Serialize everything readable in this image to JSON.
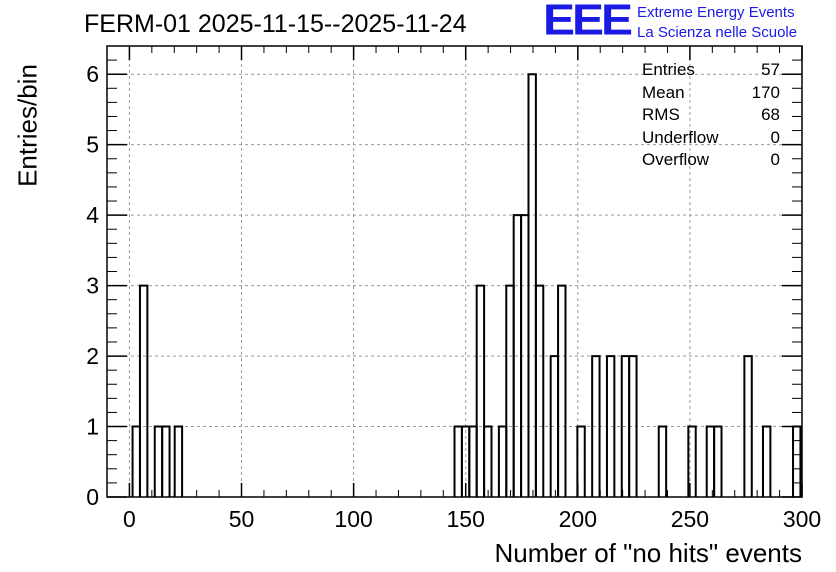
{
  "title": "FERM-01 2025-11-15--2025-11-24",
  "logo": {
    "mark": "EEE",
    "line1": "Extreme Energy Events",
    "line2": "La Scienza nelle Scuole"
  },
  "stats": [
    {
      "label": "Entries",
      "value": "57"
    },
    {
      "label": "Mean",
      "value": "170"
    },
    {
      "label": "RMS",
      "value": "68"
    },
    {
      "label": "Underflow",
      "value": "0"
    },
    {
      "label": "Overflow",
      "value": "0"
    }
  ],
  "chart_data": {
    "type": "histogram",
    "title": "FERM-01 2025-11-15--2025-11-24",
    "xlabel": "Number of \"no hits\" events",
    "ylabel": "Entries/bin",
    "xlim": [
      -10,
      300
    ],
    "ylim": [
      0,
      6.4
    ],
    "bin_width": 3.3,
    "grid": true,
    "x_ticks": [
      "0",
      "50",
      "100",
      "150",
      "200",
      "250",
      "300"
    ],
    "y_ticks": [
      "0",
      "1",
      "2",
      "3",
      "4",
      "5",
      "6"
    ],
    "bins": [
      {
        "x0": 1.4,
        "value": 1
      },
      {
        "x0": 4.7,
        "value": 3
      },
      {
        "x0": 8.0,
        "value": 0
      },
      {
        "x0": 11.3,
        "value": 1
      },
      {
        "x0": 14.6,
        "value": 1
      },
      {
        "x0": 17.9,
        "value": 0
      },
      {
        "x0": 20.2,
        "value": 1
      },
      {
        "x0": 145.0,
        "value": 1
      },
      {
        "x0": 148.3,
        "value": 1
      },
      {
        "x0": 151.6,
        "value": 1
      },
      {
        "x0": 154.9,
        "value": 3
      },
      {
        "x0": 158.2,
        "value": 1
      },
      {
        "x0": 161.5,
        "value": 0
      },
      {
        "x0": 164.8,
        "value": 1
      },
      {
        "x0": 168.1,
        "value": 3
      },
      {
        "x0": 171.4,
        "value": 4
      },
      {
        "x0": 174.7,
        "value": 4
      },
      {
        "x0": 178.0,
        "value": 6
      },
      {
        "x0": 181.3,
        "value": 3
      },
      {
        "x0": 184.6,
        "value": 0
      },
      {
        "x0": 187.9,
        "value": 2
      },
      {
        "x0": 191.2,
        "value": 3
      },
      {
        "x0": 194.5,
        "value": 0
      },
      {
        "x0": 197.8,
        "value": 0
      },
      {
        "x0": 199.8,
        "value": 1
      },
      {
        "x0": 203.1,
        "value": 0
      },
      {
        "x0": 206.4,
        "value": 2
      },
      {
        "x0": 209.7,
        "value": 0
      },
      {
        "x0": 213.0,
        "value": 2
      },
      {
        "x0": 216.3,
        "value": 0
      },
      {
        "x0": 219.6,
        "value": 2
      },
      {
        "x0": 222.9,
        "value": 2
      },
      {
        "x0": 226.2,
        "value": 0
      },
      {
        "x0": 236.1,
        "value": 1
      },
      {
        "x0": 249.3,
        "value": 1
      },
      {
        "x0": 257.5,
        "value": 1
      },
      {
        "x0": 260.8,
        "value": 1
      },
      {
        "x0": 274.3,
        "value": 2
      },
      {
        "x0": 282.6,
        "value": 1
      },
      {
        "x0": 296.0,
        "value": 1
      }
    ]
  }
}
